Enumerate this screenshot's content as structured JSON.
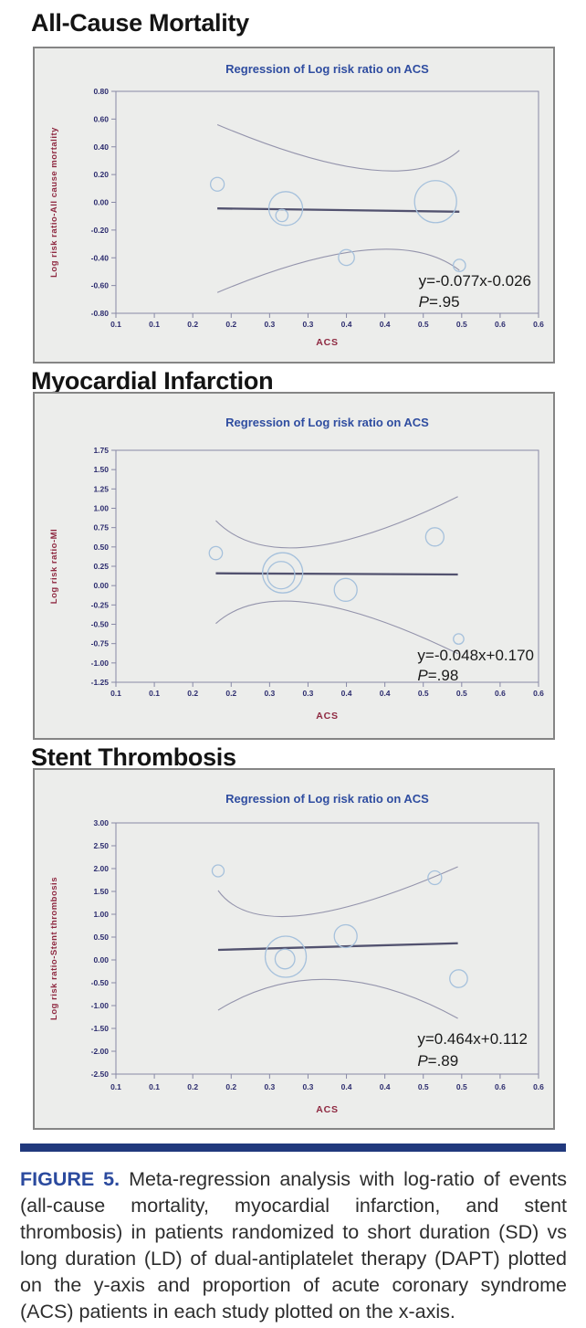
{
  "figure": {
    "label": "FIGURE 5.",
    "text": "Meta-regression analysis with log-ratio of events (all-cause mortality, myocardial infarction, and stent thrombosis) in patients randomized to short duration (SD) vs long duration (LD) of dual-antiplatelet therapy (DAPT) plotted on the y-axis and proportion of acute coronary syndrome (ACS) patients in each study plotted on the x-axis."
  },
  "colors": {
    "box_background": "#ecedeb",
    "box_border": "#858585",
    "plot_frame": "#8889a6",
    "title_blue": "#2f4da0",
    "tick_navy": "#2c2c6e",
    "axis_label_maroon": "#8e2840",
    "bubble_stroke": "#a6c1dc",
    "ci_band": "#9494ac",
    "regression_line": "#52526f",
    "annotation_text": "#1a1a1a",
    "rule_bar": "#21397d",
    "figure_label_blue": "#2b4a9e"
  },
  "chart_data": [
    {
      "type": "scatter",
      "section_heading": "All-Cause Mortality",
      "title": "Regression of Log risk ratio on ACS",
      "xlabel": "ACS",
      "ylabel": "Log risk ratio-All cause mortality",
      "x_tick_labels": [
        "0.1",
        "0.1",
        "0.2",
        "0.2",
        "0.3",
        "0.3",
        "0.4",
        "0.4",
        "0.5",
        "0.5",
        "0.6",
        "0.6"
      ],
      "x_range": [
        0.1,
        0.65
      ],
      "y_tick_labels": [
        "0.80",
        "0.60",
        "0.40",
        "0.20",
        "0.00",
        "-0.20",
        "-0.40",
        "-0.60",
        "-0.80"
      ],
      "ylim": [
        -0.8,
        0.8
      ],
      "grid": false,
      "legend": "none",
      "bubbles": [
        {
          "x": 0.232,
          "y": 0.13,
          "r": 7.5
        },
        {
          "x": 0.321,
          "y": -0.045,
          "r": 18.5
        },
        {
          "x": 0.316,
          "y": -0.095,
          "r": 6.7
        },
        {
          "x": 0.4,
          "y": -0.398,
          "r": 8.7
        },
        {
          "x": 0.516,
          "y": 0.005,
          "r": 23
        },
        {
          "x": 0.547,
          "y": -0.455,
          "r": 6.7
        }
      ],
      "regression": {
        "equation": "y=-0.077x-0.026",
        "p_value": "P=.95",
        "x1": 0.232,
        "y1": -0.044,
        "x2": 0.547,
        "y2": -0.068
      },
      "ci_upper": {
        "start": [
          0.232,
          0.56
        ],
        "mid": [
          0.43,
          0.235
        ],
        "end": [
          0.547,
          0.375
        ]
      },
      "ci_lower": {
        "start": [
          0.232,
          -0.65
        ],
        "mid": [
          0.425,
          -0.345
        ],
        "end": [
          0.547,
          -0.49
        ]
      }
    },
    {
      "type": "scatter",
      "section_heading": "Myocardial Infarction",
      "title": "Regression of Log risk ratio on ACS",
      "xlabel": "ACS",
      "ylabel": "Log risk ratio-MI",
      "x_tick_labels": [
        "0.1",
        "0.1",
        "0.2",
        "0.2",
        "0.3",
        "0.3",
        "0.4",
        "0.4",
        "0.5",
        "0.5",
        "0.6",
        "0.6"
      ],
      "x_range": [
        0.1,
        0.65
      ],
      "y_tick_labels": [
        "1.75",
        "1.50",
        "1.25",
        "1.00",
        "0.75",
        "0.50",
        "0.25",
        "0.00",
        "-0.25",
        "-0.50",
        "-0.75",
        "-1.00",
        "-1.25"
      ],
      "ylim": [
        -1.25,
        1.75
      ],
      "grid": false,
      "legend": "none",
      "bubbles": [
        {
          "x": 0.23,
          "y": 0.42,
          "r": 7.2
        },
        {
          "x": 0.317,
          "y": 0.165,
          "r": 22
        },
        {
          "x": 0.315,
          "y": 0.135,
          "r": 15
        },
        {
          "x": 0.399,
          "y": -0.055,
          "r": 12.5
        },
        {
          "x": 0.515,
          "y": 0.63,
          "r": 10
        },
        {
          "x": 0.546,
          "y": -0.69,
          "r": 5.7
        }
      ],
      "regression": {
        "equation": "y=-0.048x+0.170",
        "p_value": "P=.98",
        "x1": 0.23,
        "y1": 0.159,
        "x2": 0.545,
        "y2": 0.144
      },
      "ci_upper": {
        "start": [
          0.23,
          0.84
        ],
        "mid": [
          0.35,
          0.5
        ],
        "end": [
          0.545,
          1.15
        ]
      },
      "ci_lower": {
        "start": [
          0.23,
          -0.49
        ],
        "mid": [
          0.35,
          -0.22
        ],
        "end": [
          0.545,
          -0.88
        ]
      }
    },
    {
      "type": "scatter",
      "section_heading": "Stent Thrombosis",
      "title": "Regression of Log risk ratio on ACS",
      "xlabel": "ACS",
      "ylabel": "Log risk ratio-Stent thrombosis",
      "x_tick_labels": [
        "0.1",
        "0.1",
        "0.2",
        "0.2",
        "0.3",
        "0.3",
        "0.4",
        "0.4",
        "0.5",
        "0.5",
        "0.6",
        "0.6"
      ],
      "x_range": [
        0.1,
        0.65
      ],
      "y_tick_labels": [
        "3.00",
        "2.50",
        "2.00",
        "1.50",
        "1.00",
        "0.50",
        "0.00",
        "-0.50",
        "-1.00",
        "-1.50",
        "-2.00",
        "-2.50"
      ],
      "ylim": [
        -2.5,
        3.0
      ],
      "grid": false,
      "legend": "none",
      "bubbles": [
        {
          "x": 0.233,
          "y": 1.95,
          "r": 6.5
        },
        {
          "x": 0.321,
          "y": 0.07,
          "r": 22.5
        },
        {
          "x": 0.32,
          "y": 0.02,
          "r": 10.8
        },
        {
          "x": 0.399,
          "y": 0.52,
          "r": 12.5
        },
        {
          "x": 0.515,
          "y": 1.8,
          "r": 7.5
        },
        {
          "x": 0.546,
          "y": -0.41,
          "r": 9.7
        }
      ],
      "regression": {
        "equation": "y=0.464x+0.112",
        "p_value": "P=.89",
        "x1": 0.233,
        "y1": 0.22,
        "x2": 0.545,
        "y2": 0.365
      },
      "ci_upper": {
        "start": [
          0.233,
          1.52
        ],
        "mid": [
          0.34,
          0.97
        ],
        "end": [
          0.545,
          2.04
        ]
      },
      "ci_lower": {
        "start": [
          0.233,
          -1.1
        ],
        "mid": [
          0.38,
          -0.43
        ],
        "end": [
          0.545,
          -1.28
        ]
      }
    }
  ]
}
